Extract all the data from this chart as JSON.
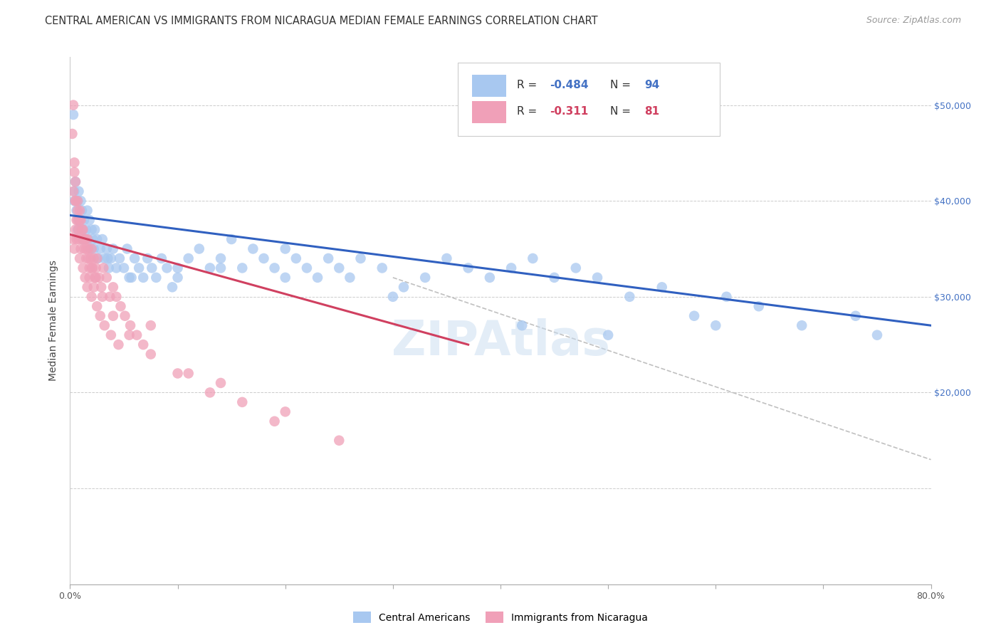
{
  "title": "CENTRAL AMERICAN VS IMMIGRANTS FROM NICARAGUA MEDIAN FEMALE EARNINGS CORRELATION CHART",
  "source": "Source: ZipAtlas.com",
  "ylabel": "Median Female Earnings",
  "right_yticks": [
    "$50,000",
    "$40,000",
    "$30,000",
    "$20,000"
  ],
  "right_ytick_vals": [
    50000,
    40000,
    30000,
    20000
  ],
  "legend_label_blue": "Central Americans",
  "legend_label_pink": "Immigrants from Nicaragua",
  "blue_color": "#A8C8F0",
  "pink_color": "#F0A0B8",
  "blue_line_color": "#3060C0",
  "pink_line_color": "#D04060",
  "dashed_line_color": "#C0C0C0",
  "watermark": "ZIPAtlas",
  "xmin": 0.0,
  "xmax": 0.8,
  "ymin": 0,
  "ymax": 55000,
  "blue_scatter_x": [
    0.003,
    0.004,
    0.005,
    0.006,
    0.007,
    0.007,
    0.008,
    0.009,
    0.01,
    0.011,
    0.012,
    0.013,
    0.014,
    0.015,
    0.016,
    0.017,
    0.018,
    0.019,
    0.02,
    0.021,
    0.022,
    0.023,
    0.025,
    0.026,
    0.028,
    0.03,
    0.032,
    0.034,
    0.036,
    0.038,
    0.04,
    0.043,
    0.046,
    0.05,
    0.053,
    0.057,
    0.06,
    0.064,
    0.068,
    0.072,
    0.076,
    0.08,
    0.085,
    0.09,
    0.095,
    0.1,
    0.11,
    0.12,
    0.13,
    0.14,
    0.15,
    0.16,
    0.17,
    0.18,
    0.19,
    0.2,
    0.21,
    0.22,
    0.23,
    0.24,
    0.25,
    0.26,
    0.27,
    0.29,
    0.31,
    0.33,
    0.35,
    0.37,
    0.39,
    0.41,
    0.43,
    0.45,
    0.47,
    0.49,
    0.52,
    0.55,
    0.58,
    0.61,
    0.64,
    0.68,
    0.004,
    0.008,
    0.012,
    0.035,
    0.055,
    0.1,
    0.14,
    0.2,
    0.3,
    0.42,
    0.5,
    0.6,
    0.73,
    0.75
  ],
  "blue_scatter_y": [
    49000,
    41000,
    42000,
    39000,
    40000,
    37000,
    41000,
    38000,
    40000,
    39000,
    37000,
    38000,
    36000,
    37000,
    39000,
    36000,
    38000,
    35000,
    37000,
    36000,
    35000,
    37000,
    36000,
    34000,
    35000,
    36000,
    34000,
    35000,
    33000,
    34000,
    35000,
    33000,
    34000,
    33000,
    35000,
    32000,
    34000,
    33000,
    32000,
    34000,
    33000,
    32000,
    34000,
    33000,
    31000,
    33000,
    34000,
    35000,
    33000,
    34000,
    36000,
    33000,
    35000,
    34000,
    33000,
    35000,
    34000,
    33000,
    32000,
    34000,
    33000,
    32000,
    34000,
    33000,
    31000,
    32000,
    34000,
    33000,
    32000,
    33000,
    34000,
    32000,
    33000,
    32000,
    30000,
    31000,
    28000,
    30000,
    29000,
    27000,
    40000,
    38000,
    36000,
    34000,
    32000,
    32000,
    33000,
    32000,
    30000,
    27000,
    26000,
    27000,
    28000,
    26000
  ],
  "pink_scatter_x": [
    0.002,
    0.003,
    0.004,
    0.004,
    0.005,
    0.005,
    0.006,
    0.007,
    0.008,
    0.009,
    0.01,
    0.011,
    0.012,
    0.013,
    0.014,
    0.015,
    0.016,
    0.017,
    0.018,
    0.019,
    0.02,
    0.021,
    0.022,
    0.023,
    0.024,
    0.025,
    0.027,
    0.029,
    0.031,
    0.034,
    0.037,
    0.04,
    0.043,
    0.047,
    0.051,
    0.056,
    0.062,
    0.068,
    0.075,
    0.003,
    0.004,
    0.005,
    0.006,
    0.007,
    0.008,
    0.009,
    0.01,
    0.012,
    0.014,
    0.016,
    0.018,
    0.02,
    0.022,
    0.025,
    0.028,
    0.032,
    0.038,
    0.045,
    0.003,
    0.005,
    0.007,
    0.009,
    0.011,
    0.013,
    0.015,
    0.017,
    0.02,
    0.024,
    0.03,
    0.04,
    0.055,
    0.075,
    0.1,
    0.13,
    0.16,
    0.2,
    0.11,
    0.14,
    0.19,
    0.25
  ],
  "pink_scatter_y": [
    47000,
    50000,
    44000,
    43000,
    42000,
    40000,
    38000,
    40000,
    37000,
    39000,
    38000,
    36000,
    37000,
    35000,
    36000,
    34000,
    36000,
    35000,
    33000,
    34000,
    35000,
    33000,
    34000,
    32000,
    33000,
    34000,
    32000,
    31000,
    33000,
    32000,
    30000,
    31000,
    30000,
    29000,
    28000,
    27000,
    26000,
    25000,
    27000,
    36000,
    35000,
    37000,
    36000,
    38000,
    36000,
    34000,
    35000,
    33000,
    32000,
    31000,
    32000,
    30000,
    31000,
    29000,
    28000,
    27000,
    26000,
    25000,
    41000,
    40000,
    39000,
    38000,
    37000,
    36000,
    35000,
    34000,
    33000,
    32000,
    30000,
    28000,
    26000,
    24000,
    22000,
    20000,
    19000,
    18000,
    22000,
    21000,
    17000,
    15000
  ],
  "blue_trend_x": [
    0.0,
    0.8
  ],
  "blue_trend_y": [
    38500,
    27000
  ],
  "pink_trend_x": [
    0.0,
    0.37
  ],
  "pink_trend_y": [
    36500,
    25000
  ],
  "dash_trend_x": [
    0.3,
    0.8
  ],
  "dash_trend_y": [
    32000,
    13000
  ],
  "grid_y_vals": [
    10000,
    20000,
    30000,
    40000,
    50000
  ],
  "background_color": "#FFFFFF",
  "title_fontsize": 10.5,
  "source_fontsize": 9,
  "axis_label_fontsize": 10,
  "tick_fontsize": 9
}
